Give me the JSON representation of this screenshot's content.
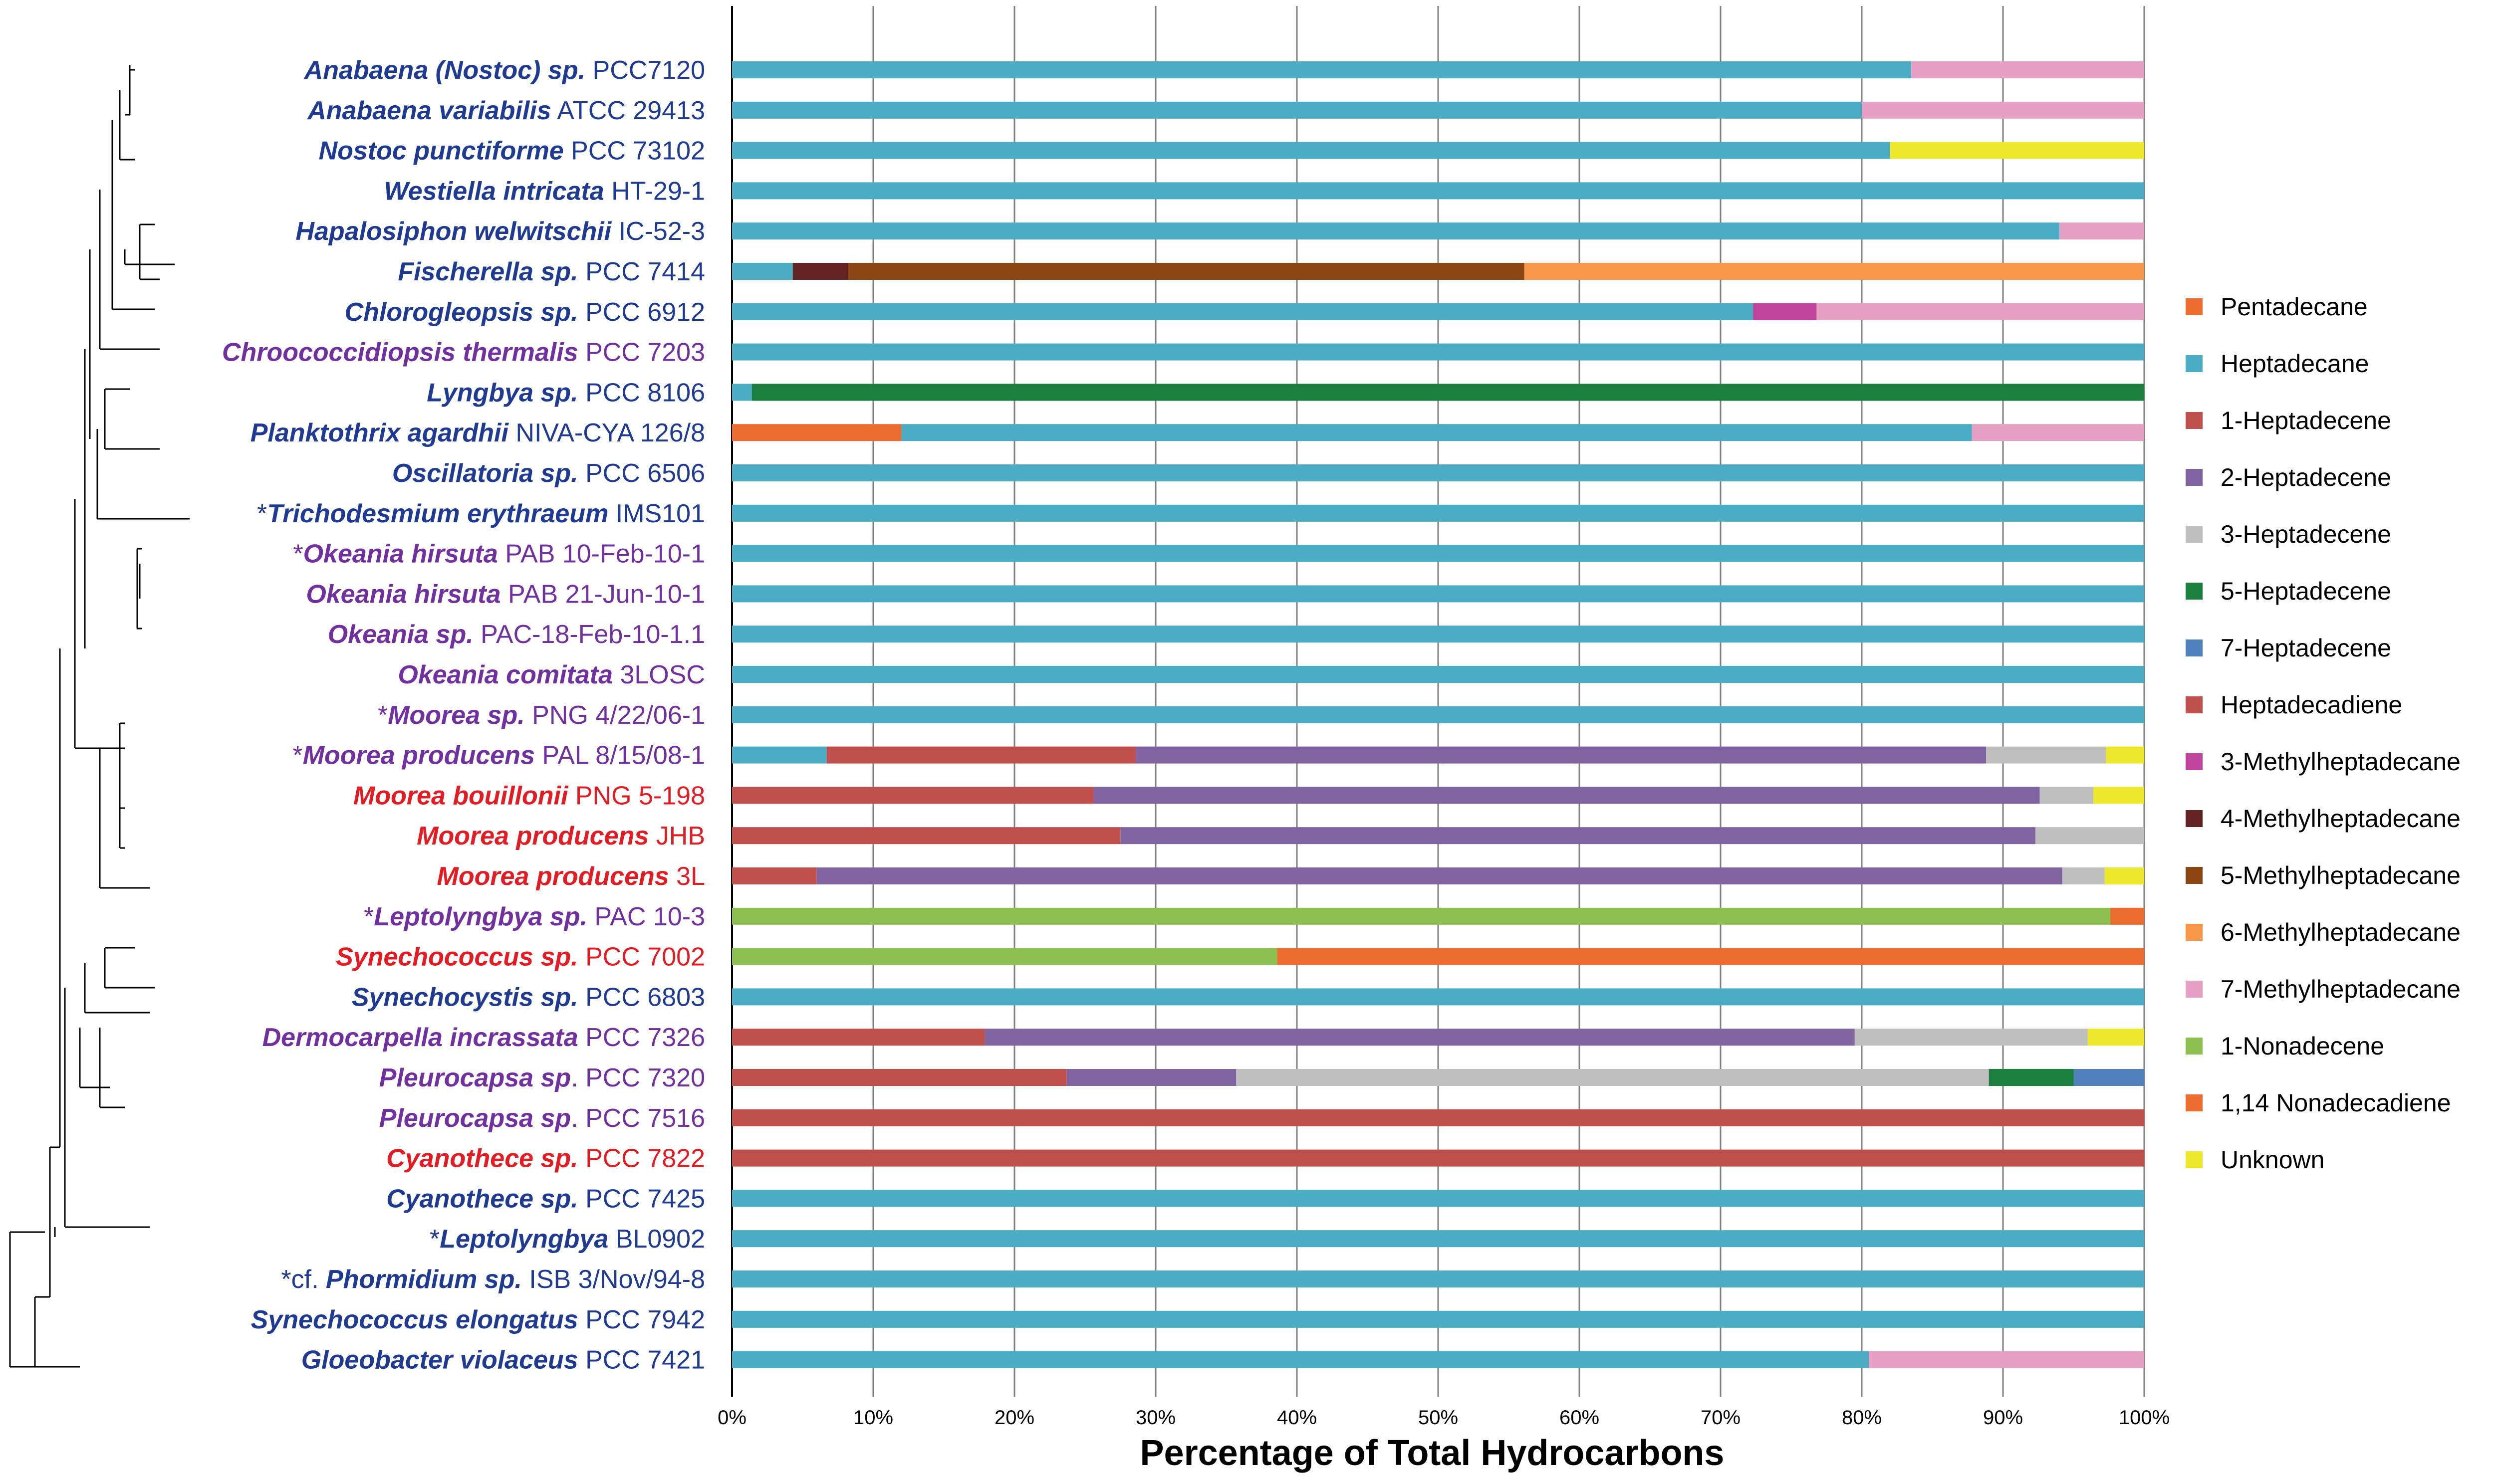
{
  "chart_data": {
    "type": "bar",
    "orientation": "horizontal",
    "stacked": true,
    "xlabel": "Percentage of Total Hydrocarbons",
    "xlim": [
      0,
      100
    ],
    "xticks": [
      "0%",
      "10%",
      "20%",
      "30%",
      "40%",
      "50%",
      "60%",
      "70%",
      "80%",
      "90%",
      "100%"
    ],
    "grid": true,
    "legend_position": "right",
    "series": [
      {
        "name": "Pentadecane",
        "color": "#ED6C2F"
      },
      {
        "name": "Heptadecane",
        "color": "#4BACC6"
      },
      {
        "name": "1-Heptadecene",
        "color": "#C0504D"
      },
      {
        "name": "2-Heptadecene",
        "color": "#8064A2"
      },
      {
        "name": "3-Heptadecene",
        "color": "#BFBFBF"
      },
      {
        "name": "5-Heptadecene",
        "color": "#1A7F3C"
      },
      {
        "name": "7-Heptadecene",
        "color": "#4F81BD"
      },
      {
        "name": "Heptadecadiene",
        "color": "#C0504D"
      },
      {
        "name": "3-Methylheptadecane",
        "color": "#C0449E"
      },
      {
        "name": "4-Methylheptadecane",
        "color": "#632523"
      },
      {
        "name": "5-Methylheptadecane",
        "color": "#8B4513"
      },
      {
        "name": "6-Methylheptadecane",
        "color": "#F79646"
      },
      {
        "name": "7-Methylheptadecane",
        "color": "#E6A0C4"
      },
      {
        "name": "1-Nonadecene",
        "color": "#8CC152"
      },
      {
        "name": "1,14 Nonadecadiene",
        "color": "#ED6C2F"
      },
      {
        "name": "Unknown",
        "color": "#EEE82C"
      }
    ],
    "rows": [
      {
        "prefix": "",
        "genus": "Anabaena (Nostoc) sp.",
        "strain": " PCC7120",
        "color": "#1F3A93",
        "segments": [
          {
            "series": "Heptadecane",
            "value": 83.5
          },
          {
            "series": "7-Methylheptadecane",
            "value": 16.5
          }
        ]
      },
      {
        "prefix": "",
        "genus": "Anabaena variabilis",
        "strain": " ATCC 29413",
        "color": "#1F3A93",
        "segments": [
          {
            "series": "Heptadecane",
            "value": 80
          },
          {
            "series": "7-Methylheptadecane",
            "value": 20
          }
        ]
      },
      {
        "prefix": "",
        "genus": "Nostoc punctiforme",
        "strain": " PCC 73102",
        "color": "#1F3A93",
        "segments": [
          {
            "series": "Heptadecane",
            "value": 82
          },
          {
            "series": "Unknown",
            "value": 18
          }
        ]
      },
      {
        "prefix": "",
        "genus": "Westiella intricata",
        "strain": " HT-29-1",
        "color": "#1F3A93",
        "segments": [
          {
            "series": "Heptadecane",
            "value": 100
          }
        ]
      },
      {
        "prefix": "",
        "genus": "Hapalosiphon welwitschii",
        "strain": " IC-52-3",
        "color": "#1F3A93",
        "segments": [
          {
            "series": "Heptadecane",
            "value": 94
          },
          {
            "series": "7-Methylheptadecane",
            "value": 6
          }
        ]
      },
      {
        "prefix": "",
        "genus": "Fischerella sp.",
        "strain": "  PCC 7414",
        "color": "#1F3A93",
        "segments": [
          {
            "series": "Heptadecane",
            "value": 4.3
          },
          {
            "series": "4-Methylheptadecane",
            "value": 3.9
          },
          {
            "series": "5-Methylheptadecane",
            "value": 47.9
          },
          {
            "series": "6-Methylheptadecane",
            "value": 43.9
          }
        ]
      },
      {
        "prefix": "",
        "genus": "Chlorogleopsis sp.",
        "strain": " PCC 6912",
        "color": "#1F3A93",
        "segments": [
          {
            "series": "Heptadecane",
            "value": 72.3
          },
          {
            "series": "3-Methylheptadecane",
            "value": 4.5
          },
          {
            "series": "7-Methylheptadecane",
            "value": 23.2
          }
        ]
      },
      {
        "prefix": "",
        "genus": "Chroococcidiopsis thermalis",
        "strain": " PCC 7203",
        "color": "#7030A0",
        "segments": [
          {
            "series": "Heptadecane",
            "value": 100
          }
        ]
      },
      {
        "prefix": "",
        "genus": "Lyngbya sp.",
        "strain": " PCC 8106",
        "color": "#1F3A93",
        "segments": [
          {
            "series": "Heptadecane",
            "value": 1.4
          },
          {
            "series": "5-Heptadecene",
            "value": 98.6
          }
        ]
      },
      {
        "prefix": "",
        "genus": "Planktothrix agardhii",
        "strain": " NIVA-CYA 126/8",
        "color": "#1F3A93",
        "segments": [
          {
            "series": "Pentadecane",
            "value": 12
          },
          {
            "series": "Heptadecane",
            "value": 75.8
          },
          {
            "series": "7-Methylheptadecane",
            "value": 12.2
          }
        ]
      },
      {
        "prefix": "",
        "genus": "Oscillatoria sp.",
        "strain": " PCC 6506",
        "color": "#1F3A93",
        "segments": [
          {
            "series": "Heptadecane",
            "value": 100
          }
        ]
      },
      {
        "prefix": "*",
        "genus": "Trichodesmium erythraeum",
        "strain": " IMS101",
        "color": "#1F3A93",
        "segments": [
          {
            "series": "Heptadecane",
            "value": 100
          }
        ]
      },
      {
        "prefix": "*",
        "genus": "Okeania hirsuta",
        "strain": " PAB 10-Feb-10-1",
        "color": "#7030A0",
        "segments": [
          {
            "series": "Heptadecane",
            "value": 100
          }
        ]
      },
      {
        "prefix": "",
        "genus": "Okeania hirsuta",
        "strain": " PAB 21-Jun-10-1",
        "color": "#7030A0",
        "segments": [
          {
            "series": "Heptadecane",
            "value": 100
          }
        ]
      },
      {
        "prefix": "",
        "genus": "Okeania sp.",
        "strain": " PAC-18-Feb-10-1.1",
        "color": "#7030A0",
        "segments": [
          {
            "series": "Heptadecane",
            "value": 100
          }
        ]
      },
      {
        "prefix": "",
        "genus": "Okeania comitata",
        "strain": " 3LOSC",
        "color": "#7030A0",
        "segments": [
          {
            "series": "Heptadecane",
            "value": 100
          }
        ]
      },
      {
        "prefix": "*",
        "genus": "Moorea sp.",
        "strain": " PNG 4/22/06-1",
        "color": "#7030A0",
        "segments": [
          {
            "series": "Heptadecane",
            "value": 100
          }
        ]
      },
      {
        "prefix": "*",
        "genus": "Moorea producens",
        "strain": " PAL 8/15/08-1",
        "color": "#7030A0",
        "segments": [
          {
            "series": "Heptadecane",
            "value": 6.7
          },
          {
            "series": "Heptadecadiene",
            "value": 21.9
          },
          {
            "series": "2-Heptadecene",
            "value": 60.2
          },
          {
            "series": "3-Heptadecene",
            "value": 8.5
          },
          {
            "series": "Unknown",
            "value": 2.7
          }
        ]
      },
      {
        "prefix": "",
        "genus": "Moorea bouillonii",
        "strain": " PNG 5-198",
        "color": "#E31B23",
        "segments": [
          {
            "series": "Heptadecadiene",
            "value": 25.6
          },
          {
            "series": "2-Heptadecene",
            "value": 67
          },
          {
            "series": "3-Heptadecene",
            "value": 3.8
          },
          {
            "series": "Unknown",
            "value": 3.6
          }
        ]
      },
      {
        "prefix": "",
        "genus": "Moorea producens",
        "strain": " JHB",
        "color": "#E31B23",
        "segments": [
          {
            "series": "Heptadecadiene",
            "value": 27.5
          },
          {
            "series": "2-Heptadecene",
            "value": 64.8
          },
          {
            "series": "3-Heptadecene",
            "value": 7.7
          }
        ]
      },
      {
        "prefix": "",
        "genus": "Moorea producens",
        "strain": "  3L",
        "color": "#E31B23",
        "segments": [
          {
            "series": "Heptadecadiene",
            "value": 6
          },
          {
            "series": "2-Heptadecene",
            "value": 88.2
          },
          {
            "series": "3-Heptadecene",
            "value": 3
          },
          {
            "series": "Unknown",
            "value": 2.8
          }
        ]
      },
      {
        "prefix": "*",
        "genus": "Leptolyngbya sp.",
        "strain": " PAC 10-3",
        "color": "#7030A0",
        "segments": [
          {
            "series": "1-Nonadecene",
            "value": 97.6
          },
          {
            "series": "1,14 Nonadecadiene",
            "value": 2.4
          }
        ]
      },
      {
        "prefix": "",
        "genus": "Synechococcus sp.",
        "strain": " PCC 7002",
        "color": "#E31B23",
        "segments": [
          {
            "series": "1-Nonadecene",
            "value": 38.6
          },
          {
            "series": "1,14 Nonadecadiene",
            "value": 61.4
          }
        ]
      },
      {
        "prefix": "",
        "genus": "Synechocystis sp.",
        "strain": " PCC 6803",
        "color": "#1F3A93",
        "segments": [
          {
            "series": "Heptadecane",
            "value": 100
          }
        ]
      },
      {
        "prefix": "",
        "genus": "Dermocarpella incrassata",
        "strain": " PCC 7326",
        "color": "#7030A0",
        "segments": [
          {
            "series": "Heptadecadiene",
            "value": 17.9
          },
          {
            "series": "2-Heptadecene",
            "value": 61.6
          },
          {
            "series": "3-Heptadecene",
            "value": 16.5
          },
          {
            "series": "Unknown",
            "value": 4
          }
        ]
      },
      {
        "prefix": "",
        "genus": "Pleurocapsa sp",
        "strain": ". PCC 7320",
        "color": "#7030A0",
        "segments": [
          {
            "series": "Heptadecadiene",
            "value": 23.7
          },
          {
            "series": "2-Heptadecene",
            "value": 12
          },
          {
            "series": "3-Heptadecene",
            "value": 53.3
          },
          {
            "series": "5-Heptadecene",
            "value": 6
          },
          {
            "series": "7-Heptadecene",
            "value": 5
          }
        ]
      },
      {
        "prefix": "",
        "genus": "Pleurocapsa sp",
        "strain": ". PCC 7516",
        "color": "#7030A0",
        "segments": [
          {
            "series": "1-Heptadecene",
            "value": 100
          }
        ]
      },
      {
        "prefix": "",
        "genus": "Cyanothece sp.",
        "strain": " PCC 7822",
        "color": "#E31B23",
        "segments": [
          {
            "series": "1-Heptadecene",
            "value": 100
          }
        ]
      },
      {
        "prefix": "",
        "genus": "Cyanothece sp.",
        "strain": " PCC 7425",
        "color": "#1F3A93",
        "segments": [
          {
            "series": "Heptadecane",
            "value": 100
          }
        ]
      },
      {
        "prefix": "*",
        "genus": "Leptolyngbya",
        "strain": " BL0902",
        "color": "#1F3A93",
        "segments": [
          {
            "series": "Heptadecane",
            "value": 100
          }
        ]
      },
      {
        "prefix": "*cf. ",
        "genus": "Phormidium sp.",
        "strain": " ISB 3/Nov/94-8",
        "color": "#1F3A93",
        "segments": [
          {
            "series": "Heptadecane",
            "value": 100
          }
        ]
      },
      {
        "prefix": "",
        "genus": "Synechococcus elongatus",
        "strain": " PCC 7942",
        "color": "#1F3A93",
        "segments": [
          {
            "series": "Heptadecane",
            "value": 100
          }
        ]
      },
      {
        "prefix": "",
        "genus": "Gloeobacter violaceus",
        "strain": " PCC 7421",
        "color": "#1F3A93",
        "segments": [
          {
            "series": "Heptadecane",
            "value": 80.5
          },
          {
            "series": "7-Methylheptadecane",
            "value": 19.5
          }
        ]
      }
    ]
  }
}
